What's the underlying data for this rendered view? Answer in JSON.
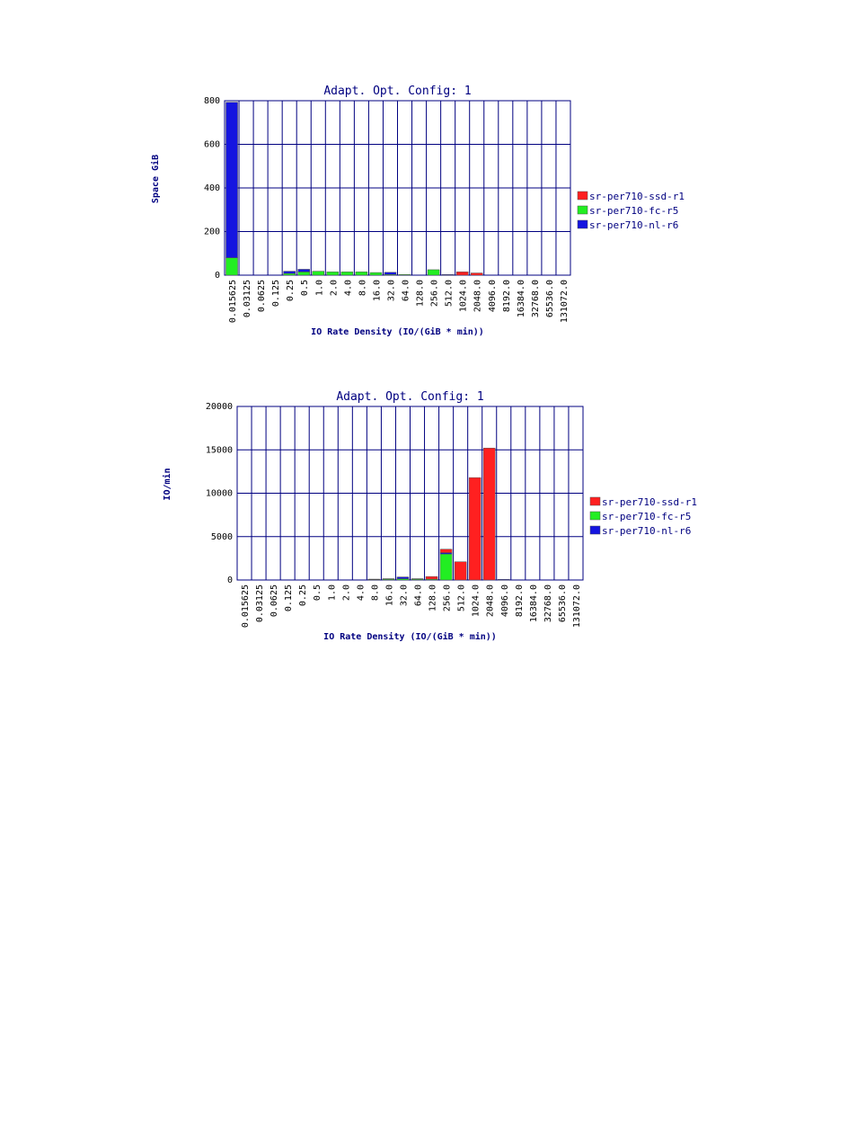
{
  "chart_data": [
    {
      "type": "bar",
      "stacked": true,
      "title": "Adapt. Opt. Config: 1",
      "xlabel": "IO Rate Density (IO/(GiB * min))",
      "ylabel": "Space GiB",
      "ylim": [
        0,
        800
      ],
      "yticks": [
        "0",
        "200",
        "400",
        "600",
        "800"
      ],
      "grid": true,
      "legend_position": "right",
      "categories": [
        "0.015625",
        "0.03125",
        "0.0625",
        "0.125",
        "0.25",
        "0.5",
        "1.0",
        "2.0",
        "4.0",
        "8.0",
        "16.0",
        "32.0",
        "64.0",
        "128.0",
        "256.0",
        "512.0",
        "1024.0",
        "2048.0",
        "4096.0",
        "8192.0",
        "16384.0",
        "32768.0",
        "65536.0",
        "131072.0"
      ],
      "series": [
        {
          "name": "sr-per710-ssd-r1",
          "color": "#ff2020",
          "values": [
            0,
            0,
            0,
            0,
            0,
            0,
            0,
            0,
            0,
            0,
            0,
            0,
            0,
            0,
            0,
            0,
            15,
            10,
            0,
            0,
            0,
            0,
            0,
            0
          ]
        },
        {
          "name": "sr-per710-fc-r5",
          "color": "#22ee22",
          "values": [
            80,
            0,
            0,
            0,
            8,
            15,
            18,
            15,
            15,
            15,
            12,
            3,
            3,
            0,
            25,
            0,
            0,
            0,
            0,
            0,
            0,
            0,
            0,
            0
          ]
        },
        {
          "name": "sr-per710-nl-r6",
          "color": "#1515e0",
          "values": [
            713,
            0,
            0,
            0,
            10,
            12,
            0,
            0,
            0,
            0,
            0,
            10,
            0,
            0,
            0,
            3,
            0,
            0,
            0,
            0,
            0,
            0,
            0,
            0
          ]
        }
      ]
    },
    {
      "type": "bar",
      "stacked": true,
      "title": "Adapt. Opt. Config: 1",
      "xlabel": "IO Rate Density (IO/(GiB * min))",
      "ylabel": "IO/min",
      "ylim": [
        0,
        20000
      ],
      "yticks": [
        "0",
        "5000",
        "10000",
        "15000",
        "20000"
      ],
      "grid": true,
      "legend_position": "right",
      "categories": [
        "0.015625",
        "0.03125",
        "0.0625",
        "0.125",
        "0.25",
        "0.5",
        "1.0",
        "2.0",
        "4.0",
        "8.0",
        "16.0",
        "32.0",
        "64.0",
        "128.0",
        "256.0",
        "512.0",
        "1024.0",
        "2048.0",
        "4096.0",
        "8192.0",
        "16384.0",
        "32768.0",
        "65536.0",
        "131072.0"
      ],
      "series": [
        {
          "name": "sr-per710-ssd-r1",
          "color": "#ff2020",
          "values": [
            0,
            0,
            0,
            0,
            0,
            0,
            0,
            0,
            0,
            0,
            0,
            0,
            0,
            300,
            400,
            2100,
            11800,
            15200,
            0,
            0,
            0,
            0,
            0,
            0
          ]
        },
        {
          "name": "sr-per710-fc-r5",
          "color": "#22ee22",
          "values": [
            0,
            0,
            0,
            0,
            0,
            0,
            0,
            0,
            0,
            50,
            100,
            150,
            100,
            100,
            3000,
            0,
            0,
            0,
            0,
            0,
            0,
            0,
            0,
            0
          ]
        },
        {
          "name": "sr-per710-nl-r6",
          "color": "#1515e0",
          "values": [
            0,
            0,
            0,
            0,
            0,
            0,
            0,
            0,
            0,
            50,
            50,
            200,
            50,
            0,
            150,
            0,
            0,
            0,
            80,
            0,
            0,
            0,
            0,
            0
          ]
        }
      ]
    }
  ]
}
